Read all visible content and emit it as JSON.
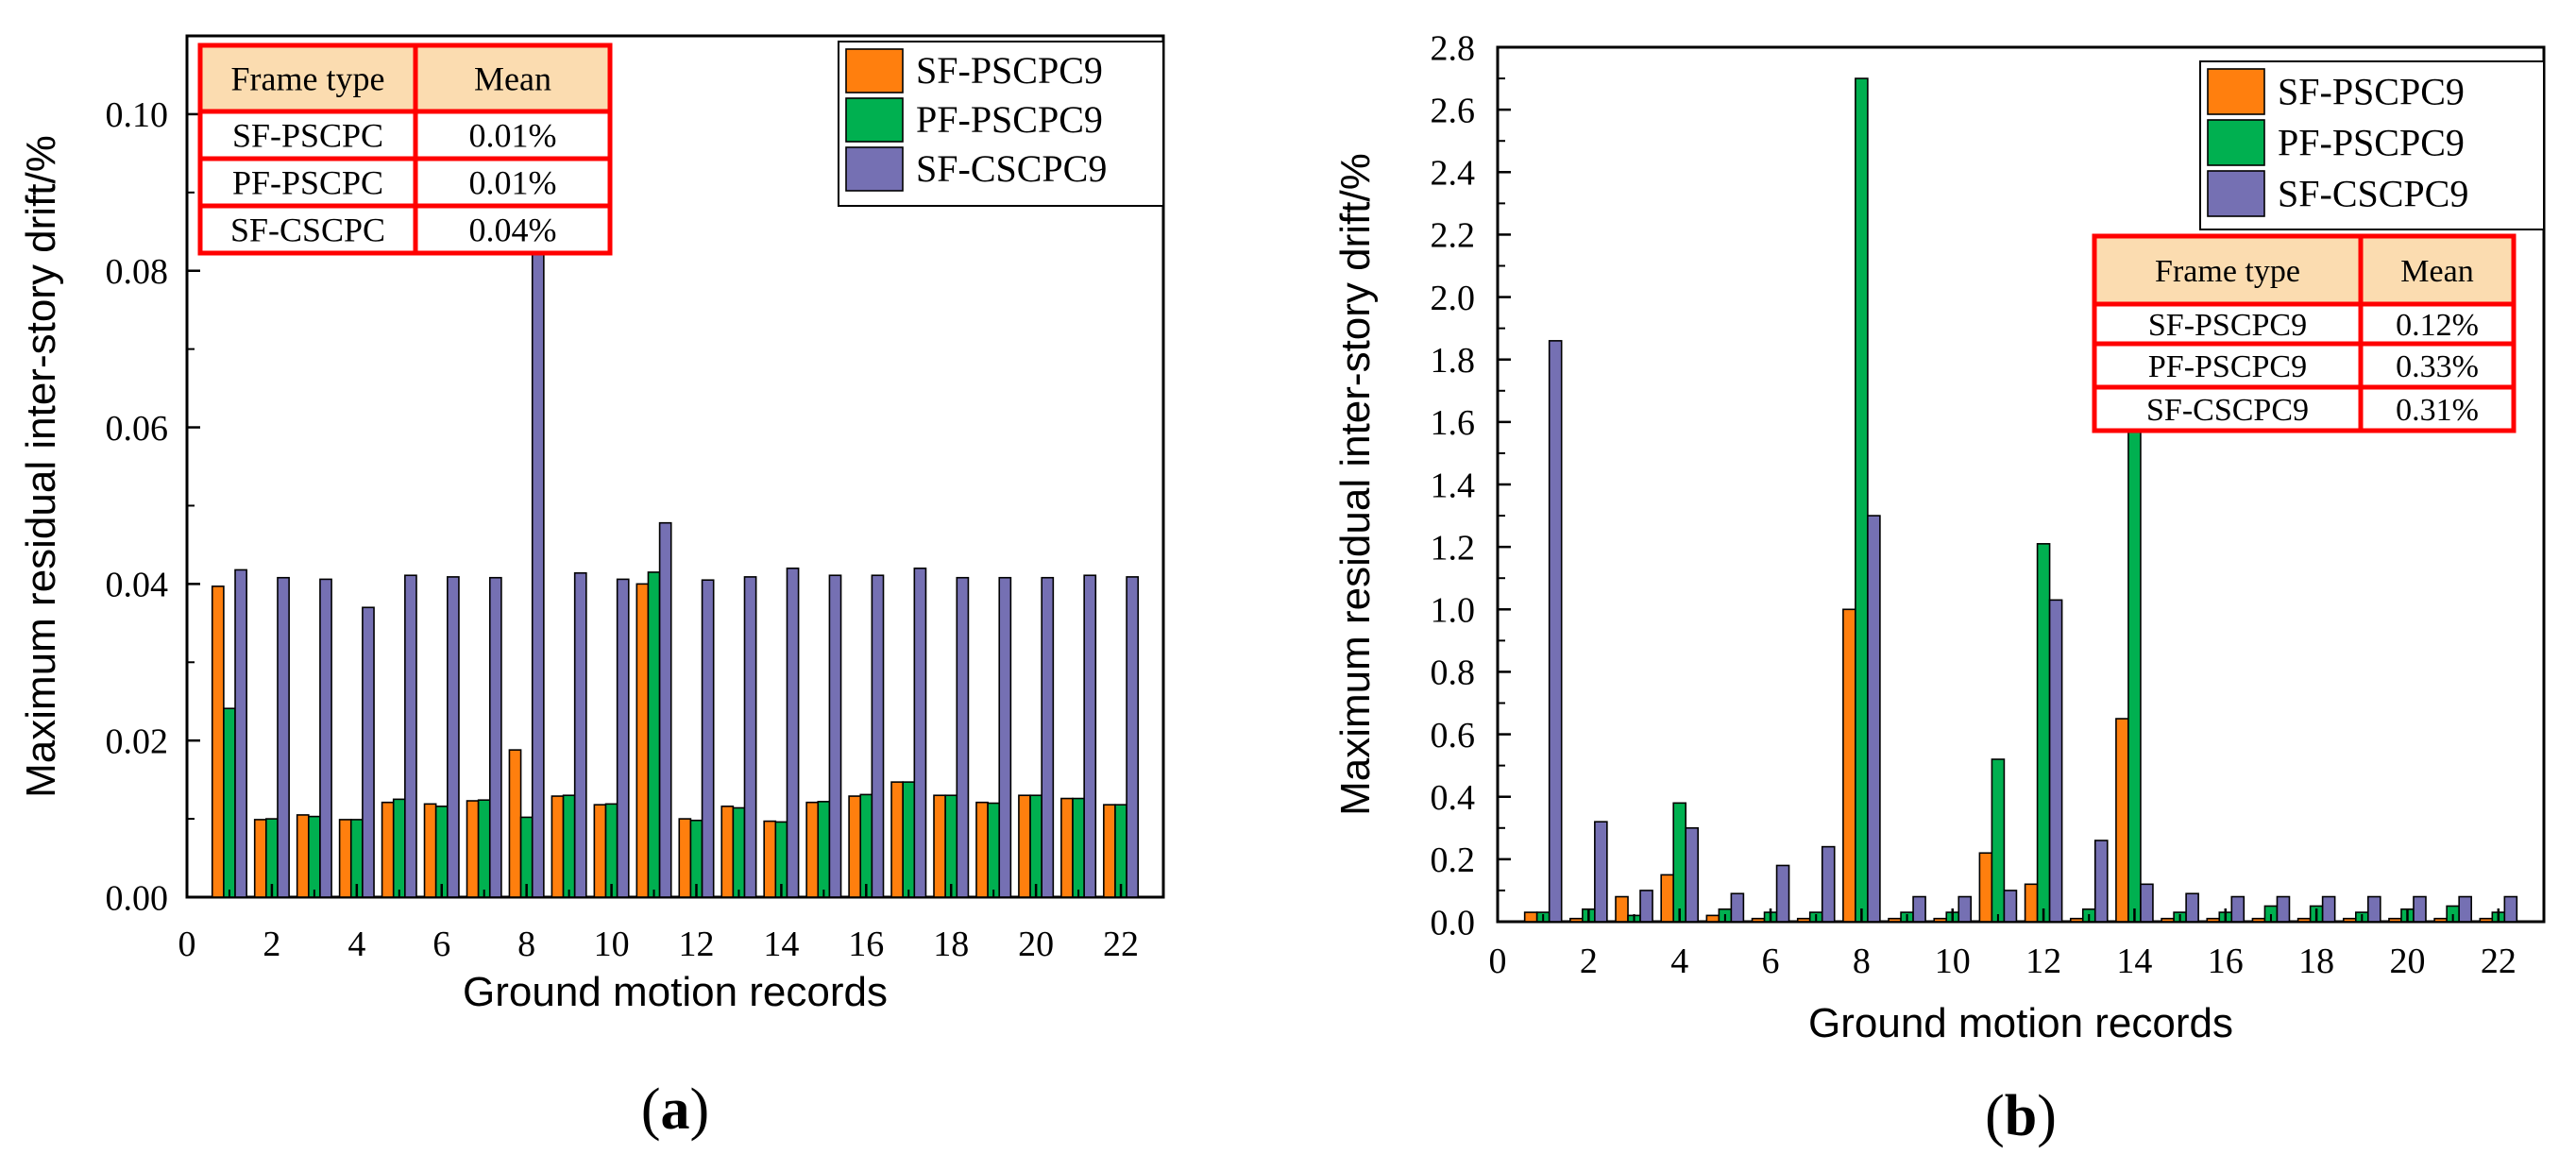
{
  "colors": {
    "series": [
      "#FF7F0E",
      "#00B050",
      "#7570B3"
    ],
    "table_border": "#FF0000",
    "table_header_fill": "#FBDCB0"
  },
  "chart_data": [
    {
      "type": "bar",
      "panel_label": "a",
      "xlabel": "Ground motion records",
      "ylabel": "Maximum  residual inter-story drift/%",
      "xlim": [
        0,
        23
      ],
      "ylim": [
        0,
        0.11
      ],
      "xticks": [
        0,
        2,
        4,
        6,
        8,
        10,
        12,
        14,
        16,
        18,
        20,
        22
      ],
      "yticks": [
        0.0,
        0.02,
        0.04,
        0.06,
        0.08,
        0.1
      ],
      "ytick_labels": [
        "0.00",
        "0.02",
        "0.04",
        "0.06",
        "0.08",
        "0.10"
      ],
      "categories": [
        1,
        2,
        3,
        4,
        5,
        6,
        7,
        8,
        9,
        10,
        11,
        12,
        13,
        14,
        15,
        16,
        17,
        18,
        19,
        20,
        21,
        22
      ],
      "series": [
        {
          "name": "SF-PSCPC9",
          "values": [
            0.0397,
            0.0099,
            0.0105,
            0.0099,
            0.0121,
            0.0119,
            0.0123,
            0.0188,
            0.0129,
            0.0118,
            0.04,
            0.01,
            0.0116,
            0.0097,
            0.0121,
            0.0129,
            0.0147,
            0.013,
            0.0121,
            0.013,
            0.0126,
            0.0118
          ]
        },
        {
          "name": "PF-PSCPC9",
          "values": [
            0.0241,
            0.01,
            0.0103,
            0.0099,
            0.0125,
            0.0116,
            0.0124,
            0.0102,
            0.013,
            0.0119,
            0.0415,
            0.0098,
            0.0114,
            0.0096,
            0.0122,
            0.0131,
            0.0147,
            0.013,
            0.012,
            0.013,
            0.0126,
            0.0118
          ]
        },
        {
          "name": "SF-CSCPC9",
          "values": [
            0.0418,
            0.0408,
            0.0406,
            0.037,
            0.0411,
            0.0409,
            0.0408,
            0.084,
            0.0414,
            0.0406,
            0.0478,
            0.0405,
            0.0409,
            0.042,
            0.0411,
            0.0411,
            0.042,
            0.0408,
            0.0408,
            0.0408,
            0.0411,
            0.0409
          ]
        }
      ],
      "legend": {
        "position": "top-right",
        "entries": [
          "SF-PSCPC9",
          "PF-PSCPC9",
          "SF-CSCPC9"
        ]
      },
      "table": {
        "position": "top-left",
        "header": [
          "Frame type",
          "Mean"
        ],
        "rows": [
          [
            "SF-PSCPC",
            "0.01%"
          ],
          [
            "PF-PSCPC",
            "0.01%"
          ],
          [
            "SF-CSCPC",
            "0.04%"
          ]
        ]
      }
    },
    {
      "type": "bar",
      "panel_label": "b",
      "xlabel": "Ground motion records",
      "ylabel": "Maximum  residual inter-story drift/%",
      "xlim": [
        0,
        23
      ],
      "ylim": [
        0,
        2.8
      ],
      "xticks": [
        0,
        2,
        4,
        6,
        8,
        10,
        12,
        14,
        16,
        18,
        20,
        22
      ],
      "yticks": [
        0.0,
        0.2,
        0.4,
        0.6,
        0.8,
        1.0,
        1.2,
        1.4,
        1.6,
        1.8,
        2.0,
        2.2,
        2.4,
        2.6,
        2.8
      ],
      "ytick_labels": [
        "0.0",
        "0.2",
        "0.4",
        "0.6",
        "0.8",
        "1.0",
        "1.2",
        "1.4",
        "1.6",
        "1.8",
        "2.0",
        "2.2",
        "2.4",
        "2.6",
        "2.8"
      ],
      "categories": [
        1,
        2,
        3,
        4,
        5,
        6,
        7,
        8,
        9,
        10,
        11,
        12,
        13,
        14,
        15,
        16,
        17,
        18,
        19,
        20,
        21,
        22
      ],
      "series": [
        {
          "name": "SF-PSCPC9",
          "values": [
            0.03,
            0.01,
            0.08,
            0.15,
            0.02,
            0.01,
            0.01,
            1.0,
            0.01,
            0.01,
            0.22,
            0.12,
            0.01,
            0.65,
            0.01,
            0.01,
            0.01,
            0.01,
            0.01,
            0.01,
            0.01,
            0.01
          ]
        },
        {
          "name": "PF-PSCPC9",
          "values": [
            0.03,
            0.04,
            0.02,
            0.38,
            0.04,
            0.03,
            0.03,
            2.7,
            0.03,
            0.03,
            0.52,
            1.21,
            0.04,
            1.7,
            0.03,
            0.03,
            0.05,
            0.05,
            0.03,
            0.04,
            0.05,
            0.03
          ]
        },
        {
          "name": "SF-CSCPC9",
          "values": [
            1.86,
            0.32,
            0.1,
            0.3,
            0.09,
            0.18,
            0.24,
            1.3,
            0.08,
            0.08,
            0.1,
            1.03,
            0.26,
            0.12,
            0.09,
            0.08,
            0.08,
            0.08,
            0.08,
            0.08,
            0.08,
            0.08
          ]
        }
      ],
      "legend": {
        "position": "top-right",
        "entries": [
          "SF-PSCPC9",
          "PF-PSCPC9",
          "SF-CSCPC9"
        ]
      },
      "table": {
        "position": "top-right",
        "header": [
          "Frame type",
          "Mean"
        ],
        "rows": [
          [
            "SF-PSCPC9",
            "0.12%"
          ],
          [
            "PF-PSCPC9",
            "0.33%"
          ],
          [
            "SF-CSCPC9",
            "0.31%"
          ]
        ]
      }
    }
  ]
}
